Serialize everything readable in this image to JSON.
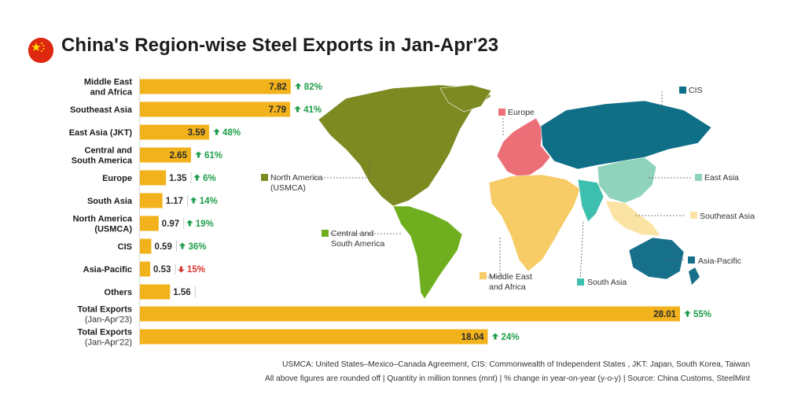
{
  "title": "China's Region-wise Steel Exports in Jan-Apr'23",
  "flag": {
    "icon": "china-flag-icon",
    "red": "#de2910",
    "yellow": "#ffde00"
  },
  "colors": {
    "bar": "#f2b21b",
    "up": "#1e9e4a",
    "down": "#d9342b",
    "europe": "#ec6f78",
    "cis": "#0f6f86",
    "east_asia": "#8fd3bd",
    "southeast_asia": "#fbe4a3",
    "asia_pacific": "#17708a",
    "south_asia": "#3cbfae",
    "north_america": "#7d8a22",
    "central_south_america": "#6fae1f",
    "middle_east_africa": "#f7cb65"
  },
  "chart_data": {
    "type": "bar",
    "orientation": "horizontal",
    "unit": "million tonnes (mnt)",
    "categories": [
      "Middle East\nand Africa",
      "Southeast Asia",
      "East Asia (JKT)",
      "Central and\nSouth America",
      "Europe",
      "South Asia",
      "North America\n(USMCA)",
      "CIS",
      "Asia-Pacific",
      "Others"
    ],
    "values": [
      7.82,
      7.79,
      3.59,
      2.65,
      1.35,
      1.17,
      0.97,
      0.59,
      0.53,
      1.56
    ],
    "value_labels": [
      "7.82",
      "7.79",
      "3.59",
      "2.65",
      "1.35",
      "1.17",
      "0.97",
      "0.59",
      "0.53",
      "1.56"
    ],
    "yoy_change": [
      "82%",
      "41%",
      "48%",
      "61%",
      "6%",
      "14%",
      "19%",
      "36%",
      "15%",
      ""
    ],
    "yoy_direction": [
      "up",
      "up",
      "up",
      "up",
      "up",
      "up",
      "up",
      "up",
      "down",
      ""
    ],
    "totals": [
      {
        "label": "Total Exports",
        "sublabel": "(Jan-Apr'23)",
        "value": 28.01,
        "value_label": "28.01",
        "change": "55%",
        "direction": "up"
      },
      {
        "label": "Total Exports",
        "sublabel": "(Jan-Apr'22)",
        "value": 18.04,
        "value_label": "18.04",
        "change": "24%",
        "direction": "up"
      }
    ],
    "xlim": [
      0,
      28.01
    ]
  },
  "map": {
    "labels": {
      "europe": "Europe",
      "cis": "CIS",
      "north_america": "North America\n(USMCA)",
      "east_asia": "East Asia",
      "southeast_asia": "Southeast Asia",
      "central_south_america": "Central and\nSouth America",
      "asia_pacific": "Asia-Pacific",
      "middle_east_africa": "Middle East\nand Africa",
      "south_asia": "South Asia"
    }
  },
  "footnotes": [
    "USMCA: United States–Mexico–Canada Agreement, CIS: Commonwealth of Independent States , JKT: Japan, South Korea, Taiwan",
    "All above figures are rounded off  |  Quantity in million tonnes (mnt)  |  % change in year-on-year (y-o-y)  |  Source: China Customs, SteelMint"
  ]
}
